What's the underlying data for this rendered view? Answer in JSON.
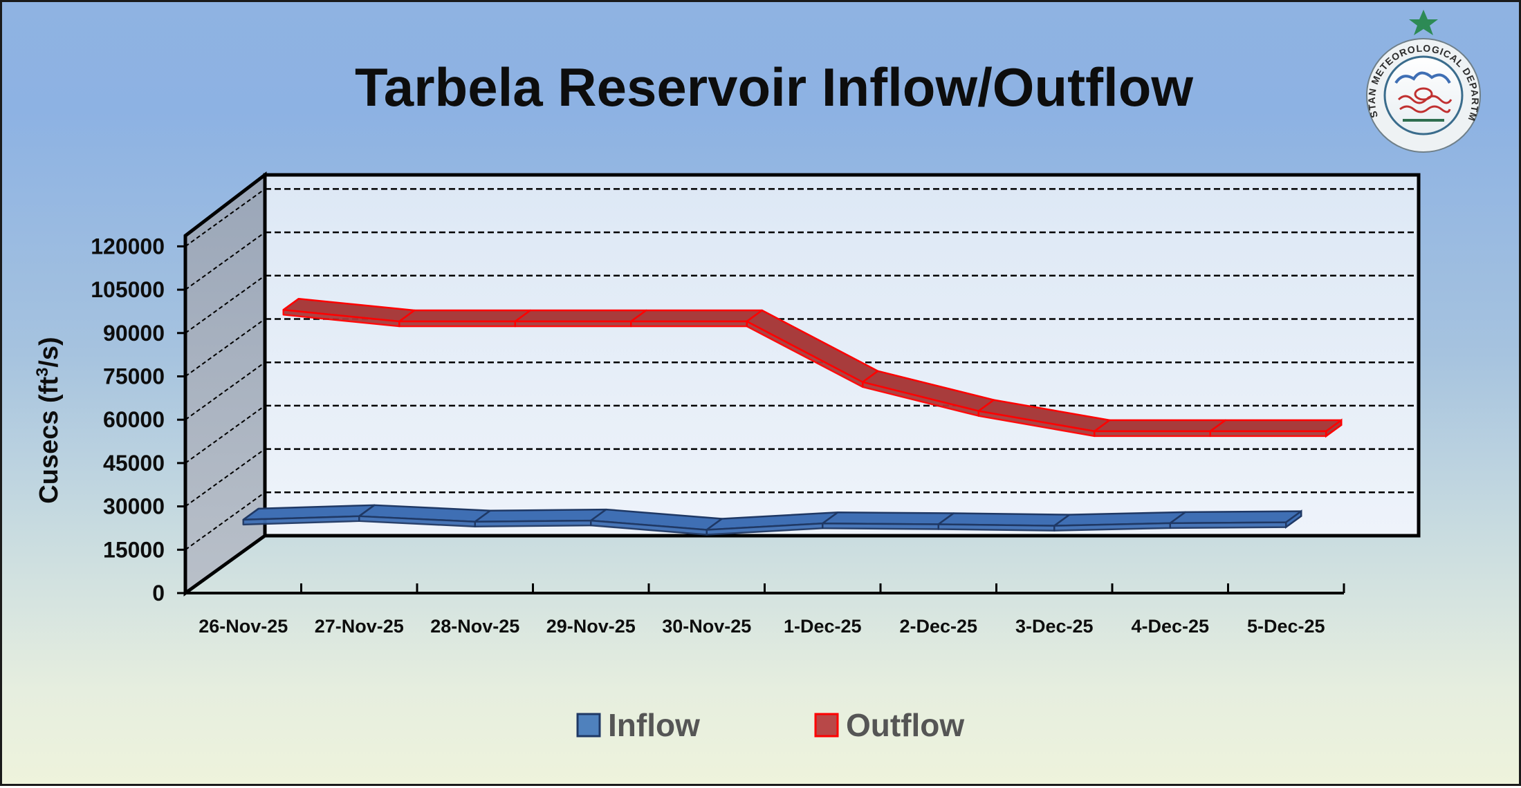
{
  "chart_data": {
    "type": "line",
    "title": "Tarbela Reservoir Inflow/Outflow",
    "ylabel": "Cusecs (ft",
    "ylabel_superscript": "3",
    "ylabel_suffix": "/s)",
    "xlabel": "",
    "ylim": [
      0,
      120000
    ],
    "yticks": [
      0,
      15000,
      30000,
      45000,
      60000,
      75000,
      90000,
      105000,
      120000
    ],
    "ytick_labels": [
      "0",
      "15000",
      "30000",
      "45000",
      "60000",
      "75000",
      "90000",
      "105000",
      "120000"
    ],
    "categories": [
      "26-Nov-25",
      "27-Nov-25",
      "28-Nov-25",
      "29-Nov-25",
      "30-Nov-25",
      "1-Dec-25",
      "2-Dec-25",
      "3-Dec-25",
      "4-Dec-25",
      "5-Dec-25"
    ],
    "series": [
      {
        "name": "Inflow",
        "color": "#3f6fb4",
        "edge": "#1f3864",
        "values": [
          25400,
          26600,
          24700,
          25100,
          21900,
          24100,
          23800,
          23300,
          24200,
          24500
        ]
      },
      {
        "name": "Outflow",
        "color": "#a83c3c",
        "edge": "#ff0000",
        "values": [
          88000,
          84000,
          84000,
          84000,
          84000,
          63000,
          53000,
          46000,
          46000,
          46000
        ]
      }
    ],
    "legend_position": "bottom",
    "grid": true
  },
  "logo": {
    "label": "PAKISTAN METEOROLOGICAL DEPARTMENT"
  }
}
